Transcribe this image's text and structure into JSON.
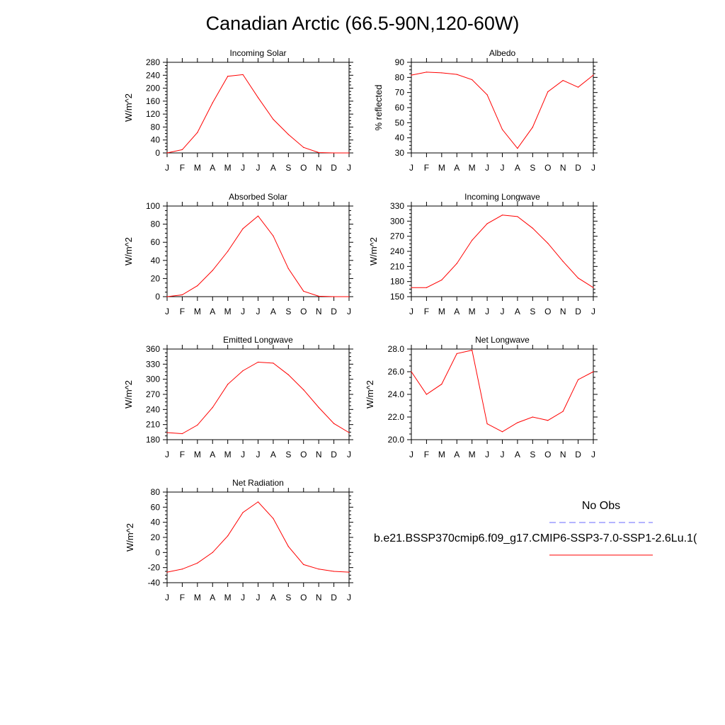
{
  "title": "Canadian Arctic (66.5-90N,120-60W)",
  "legend": {
    "obs_label": "No Obs",
    "obs_color": "#6a6aff",
    "case_label": "b.e21.BSSP370cmip6.f09_g17.CMIP6-SSP3-7.0-SSP1-2.6Lu.1(",
    "case_color": "#ff0000"
  },
  "chart_data": [
    {
      "type": "line",
      "title": "Incoming Solar",
      "ylabel": "W/m^2",
      "categories": [
        "J",
        "F",
        "M",
        "A",
        "M",
        "J",
        "J",
        "A",
        "S",
        "O",
        "N",
        "D",
        "J"
      ],
      "yticks": [
        "0",
        "40",
        "80",
        "120",
        "160",
        "200",
        "240",
        "280"
      ],
      "ylim": [
        0,
        280
      ],
      "series": [
        {
          "values": [
            0,
            10,
            63,
            155,
            237,
            242,
            171,
            104,
            57,
            17,
            1,
            0,
            0
          ],
          "color": "#ff0000"
        }
      ]
    },
    {
      "type": "line",
      "title": "Albedo",
      "ylabel": "% reflected",
      "categories": [
        "J",
        "F",
        "M",
        "A",
        "M",
        "J",
        "J",
        "A",
        "S",
        "O",
        "N",
        "D",
        "J"
      ],
      "yticks": [
        "30",
        "40",
        "50",
        "60",
        "70",
        "80",
        "90"
      ],
      "ylim": [
        30,
        90
      ],
      "series": [
        {
          "values": [
            81.5,
            83.5,
            83,
            82,
            78.5,
            68.5,
            45.5,
            33,
            47,
            70.5,
            78,
            73.5,
            81.5
          ],
          "color": "#ff0000"
        }
      ]
    },
    {
      "type": "line",
      "title": "Absorbed Solar",
      "ylabel": "W/m^2",
      "categories": [
        "J",
        "F",
        "M",
        "A",
        "M",
        "J",
        "J",
        "A",
        "S",
        "O",
        "N",
        "D",
        "J"
      ],
      "yticks": [
        "0",
        "20",
        "40",
        "60",
        "80",
        "100"
      ],
      "ylim": [
        0,
        100
      ],
      "series": [
        {
          "values": [
            0,
            2,
            12,
            29,
            50,
            75,
            89,
            67,
            31,
            6,
            0.5,
            0,
            0
          ],
          "color": "#ff0000"
        }
      ]
    },
    {
      "type": "line",
      "title": "Incoming Longwave",
      "ylabel": "W/m^2",
      "categories": [
        "J",
        "F",
        "M",
        "A",
        "M",
        "J",
        "J",
        "A",
        "S",
        "O",
        "N",
        "D",
        "J"
      ],
      "yticks": [
        "150",
        "180",
        "210",
        "240",
        "270",
        "300",
        "330"
      ],
      "ylim": [
        150,
        330
      ],
      "series": [
        {
          "values": [
            168,
            168,
            183,
            216,
            262,
            295,
            312,
            309,
            286,
            256,
            220,
            187,
            168
          ],
          "color": "#ff0000"
        }
      ]
    },
    {
      "type": "line",
      "title": "Emitted Longwave",
      "ylabel": "W/m^2",
      "categories": [
        "J",
        "F",
        "M",
        "A",
        "M",
        "J",
        "J",
        "A",
        "S",
        "O",
        "N",
        "D",
        "J"
      ],
      "yticks": [
        "180",
        "210",
        "240",
        "270",
        "300",
        "330",
        "360"
      ],
      "ylim": [
        180,
        360
      ],
      "series": [
        {
          "values": [
            194,
            192,
            209,
            244,
            290,
            317,
            334,
            332,
            309,
            279,
            244,
            212,
            194
          ],
          "color": "#ff0000"
        }
      ]
    },
    {
      "type": "line",
      "title": "Net Longwave",
      "ylabel": "W/m^2",
      "categories": [
        "J",
        "F",
        "M",
        "A",
        "M",
        "J",
        "J",
        "A",
        "S",
        "O",
        "N",
        "D",
        "J"
      ],
      "yticks": [
        "20.0",
        "22.0",
        "24.0",
        "26.0",
        "28.0"
      ],
      "ylim": [
        20,
        28
      ],
      "series": [
        {
          "values": [
            26.0,
            24.0,
            24.9,
            27.6,
            27.9,
            21.4,
            20.7,
            21.5,
            22.0,
            21.7,
            22.5,
            25.3,
            26.0
          ],
          "color": "#ff0000"
        }
      ]
    },
    {
      "type": "line",
      "title": "Net Radiation",
      "ylabel": "W/m^2",
      "categories": [
        "J",
        "F",
        "M",
        "A",
        "M",
        "J",
        "J",
        "A",
        "S",
        "O",
        "N",
        "D",
        "J"
      ],
      "yticks": [
        "-40",
        "-20",
        "0",
        "20",
        "40",
        "60",
        "80"
      ],
      "ylim": [
        -40,
        80
      ],
      "series": [
        {
          "values": [
            -26,
            -22,
            -14,
            0,
            22,
            53,
            67,
            45,
            8,
            -16,
            -22,
            -25,
            -26
          ],
          "color": "#ff0000"
        }
      ]
    }
  ]
}
